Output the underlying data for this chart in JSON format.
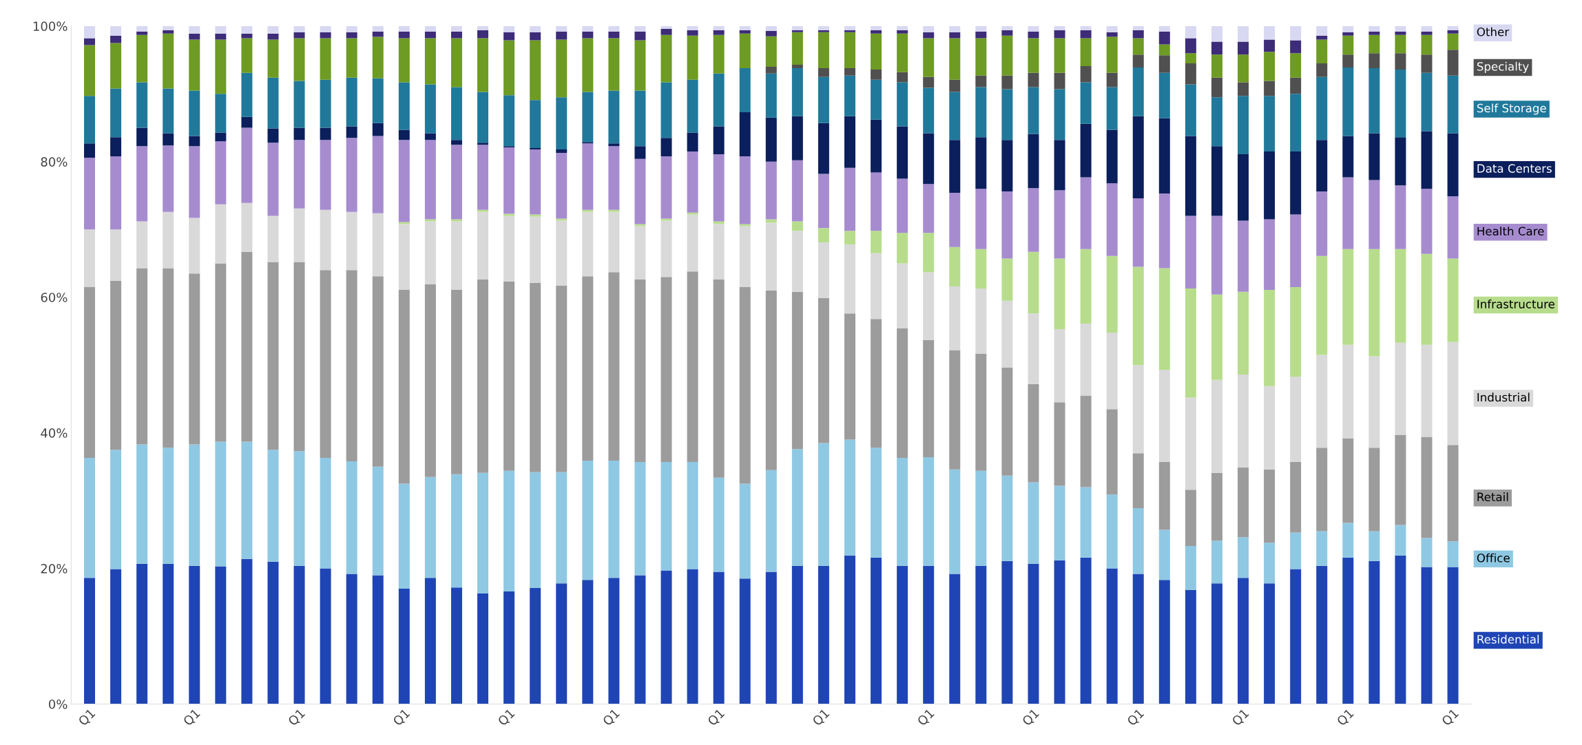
{
  "chart_data": {
    "type": "bar",
    "stacked": true,
    "categories": [
      "Q1",
      null,
      null,
      null,
      "Q1",
      null,
      null,
      null,
      "Q1",
      null,
      null,
      null,
      "Q1",
      null,
      null,
      null,
      "Q1",
      null,
      null,
      null,
      "Q1",
      null,
      null,
      null,
      "Q1",
      null,
      null,
      null,
      "Q1",
      null,
      null,
      null,
      "Q1",
      null,
      null,
      null,
      "Q1",
      null,
      null,
      null,
      "Q1",
      null,
      null,
      null,
      "Q1",
      null,
      null,
      null,
      "Q1",
      null,
      null,
      null,
      "Q1"
    ],
    "ylim": [
      0,
      100
    ],
    "yticks": [
      {
        "value": 0,
        "label": "0%"
      },
      {
        "value": 20,
        "label": "20%"
      },
      {
        "value": 40,
        "label": "40%"
      },
      {
        "value": 60,
        "label": "60%"
      },
      {
        "value": 80,
        "label": "80%"
      },
      {
        "value": 100,
        "label": "100%"
      }
    ],
    "series": [
      {
        "name": "Residential",
        "color": "#1f45b5",
        "values": [
          18.6,
          19.9,
          20.7,
          20.7,
          20.4,
          20.3,
          21.4,
          21.0,
          20.4,
          20.0,
          19.2,
          19.0,
          17.0,
          18.6,
          17.2,
          16.3,
          16.6,
          17.1,
          17.8,
          18.3,
          18.6,
          19.0,
          19.7,
          19.9,
          19.5,
          18.5,
          19.5,
          20.4,
          20.4,
          21.9,
          21.6,
          20.4,
          20.4,
          19.2,
          20.4,
          21.1,
          20.7,
          21.2,
          21.6,
          20.0,
          19.2,
          18.3,
          16.8,
          17.8,
          18.6,
          17.8,
          19.9,
          20.4,
          21.6,
          21.1,
          21.9,
          20.2,
          20.2
        ]
      },
      {
        "name": "Office",
        "color": "#8fc8e3",
        "values": [
          17.7,
          17.6,
          17.6,
          17.1,
          17.9,
          18.4,
          17.3,
          16.5,
          16.9,
          16.3,
          16.6,
          16.0,
          15.5,
          14.9,
          16.7,
          17.8,
          17.8,
          17.1,
          16.4,
          17.6,
          17.3,
          16.7,
          16.0,
          15.8,
          13.9,
          14.0,
          15.0,
          17.2,
          18.1,
          17.1,
          16.2,
          15.9,
          16.0,
          15.4,
          14.0,
          12.6,
          12.0,
          11.0,
          10.4,
          10.9,
          9.7,
          7.4,
          6.5,
          6.3,
          6.0,
          6.0,
          5.4,
          5.1,
          5.1,
          4.4,
          4.5,
          4.3,
          3.8
        ]
      },
      {
        "name": "Retail",
        "color": "#9c9c9c",
        "values": [
          25.2,
          24.9,
          26.0,
          26.5,
          25.2,
          26.3,
          28.0,
          27.7,
          27.9,
          27.7,
          28.2,
          28.1,
          28.6,
          28.4,
          27.2,
          28.5,
          27.9,
          27.9,
          27.5,
          27.2,
          27.8,
          26.9,
          27.3,
          28.1,
          29.2,
          29.0,
          26.5,
          23.2,
          21.4,
          18.6,
          19.0,
          19.1,
          17.3,
          17.6,
          17.3,
          15.9,
          14.5,
          12.3,
          13.5,
          12.6,
          8.1,
          10.0,
          8.3,
          10.0,
          10.3,
          10.8,
          10.4,
          12.3,
          12.5,
          12.3,
          13.3,
          14.9,
          14.2
        ]
      },
      {
        "name": "Industrial",
        "color": "#d9d9d9",
        "values": [
          8.5,
          7.6,
          6.9,
          8.3,
          8.2,
          8.7,
          7.2,
          6.8,
          7.9,
          8.9,
          8.6,
          9.3,
          9.7,
          9.3,
          10.1,
          10.0,
          9.7,
          9.8,
          9.6,
          9.5,
          8.9,
          7.9,
          8.3,
          8.4,
          8.2,
          9.0,
          10.0,
          9.0,
          8.2,
          10.2,
          9.7,
          9.6,
          10.0,
          9.4,
          9.6,
          9.9,
          10.4,
          10.8,
          10.6,
          11.3,
          13.0,
          13.6,
          13.6,
          13.7,
          13.7,
          12.3,
          12.6,
          13.7,
          13.8,
          13.5,
          13.6,
          13.6,
          15.2
        ]
      },
      {
        "name": "Infrastructure",
        "color": "#b7dd8c",
        "values": [
          0,
          0,
          0,
          0,
          0,
          0,
          0,
          0,
          0,
          0,
          0,
          0,
          0.3,
          0.3,
          0.3,
          0.3,
          0.3,
          0.3,
          0.3,
          0.3,
          0.3,
          0.3,
          0.3,
          0.3,
          0.4,
          0.3,
          0.5,
          1.4,
          2.1,
          2.0,
          3.3,
          4.5,
          5.8,
          5.8,
          5.8,
          6.2,
          9.1,
          10.4,
          11.0,
          11.3,
          14.5,
          15.0,
          16.1,
          12.6,
          12.2,
          14.2,
          13.2,
          14.6,
          14.1,
          15.8,
          13.8,
          13.4,
          12.3
        ]
      },
      {
        "name": "Health Care",
        "color": "#a68ccf",
        "values": [
          10.6,
          10.8,
          11.1,
          9.8,
          10.6,
          9.3,
          11.1,
          10.8,
          10.1,
          10.3,
          10.9,
          11.4,
          12.1,
          11.7,
          11.0,
          9.6,
          9.8,
          9.6,
          9.7,
          9.8,
          9.4,
          9.6,
          9.2,
          9.0,
          9.9,
          10.0,
          8.5,
          9.0,
          8.0,
          9.3,
          8.6,
          8.0,
          7.2,
          8.0,
          8.9,
          9.9,
          9.4,
          10.1,
          10.6,
          10.7,
          10.1,
          11.0,
          10.7,
          11.6,
          10.5,
          10.4,
          10.7,
          9.5,
          10.6,
          10.2,
          9.4,
          9.6,
          9.2
        ]
      },
      {
        "name": "Data Centers",
        "color": "#0b1f5c",
        "values": [
          2.1,
          2.8,
          2.7,
          1.8,
          1.5,
          1.3,
          1.6,
          2.1,
          1.8,
          1.8,
          1.7,
          1.9,
          1.5,
          1.0,
          0.7,
          0.3,
          0.2,
          0.2,
          0.5,
          0.2,
          0.4,
          1.9,
          2.7,
          2.8,
          4.1,
          6.5,
          6.5,
          6.5,
          7.5,
          7.6,
          7.8,
          7.7,
          7.5,
          7.8,
          7.6,
          7.6,
          8.0,
          7.4,
          7.9,
          7.9,
          12.1,
          11.1,
          11.8,
          10.3,
          9.8,
          10.0,
          9.3,
          7.6,
          6.1,
          6.9,
          7.1,
          8.5,
          9.3
        ]
      },
      {
        "name": "Self Storage",
        "color": "#20799b",
        "values": [
          7.0,
          7.2,
          6.7,
          6.6,
          6.7,
          5.7,
          6.5,
          7.5,
          6.9,
          7.1,
          7.2,
          6.6,
          7.0,
          7.2,
          7.8,
          7.5,
          7.5,
          7.1,
          7.7,
          7.4,
          7.8,
          8.2,
          8.2,
          7.8,
          7.8,
          6.5,
          6.5,
          7.1,
          6.8,
          6.0,
          5.9,
          6.5,
          6.7,
          7.1,
          7.4,
          7.5,
          6.9,
          7.5,
          6.1,
          6.3,
          7.2,
          6.7,
          7.6,
          7.2,
          8.6,
          8.2,
          8.5,
          9.3,
          10.1,
          9.6,
          10.0,
          8.6,
          8.5
        ]
      },
      {
        "name": "Specialty",
        "color": "#505050",
        "values": [
          0,
          0,
          0,
          0,
          0,
          0,
          0,
          0,
          0,
          0,
          0,
          0,
          0,
          0,
          0,
          0,
          0,
          0,
          0,
          0,
          0,
          0,
          0,
          0,
          0,
          0,
          1.0,
          0.5,
          1.3,
          1.1,
          1.5,
          1.5,
          1.6,
          1.8,
          1.7,
          2.0,
          2.1,
          2.4,
          2.4,
          2.1,
          1.9,
          2.6,
          3.1,
          2.9,
          2.0,
          2.2,
          2.4,
          2.0,
          1.9,
          2.2,
          2.4,
          2.7,
          3.8
        ]
      },
      {
        "color": "#6e9b23",
        "values": [
          7.5,
          6.7,
          7.0,
          8.1,
          7.5,
          8.0,
          5.1,
          5.6,
          6.3,
          6.1,
          5.8,
          6.1,
          6.5,
          6.8,
          7.2,
          7.9,
          8.1,
          8.8,
          8.5,
          7.9,
          7.7,
          7.4,
          7.0,
          6.5,
          5.7,
          5.1,
          4.5,
          4.8,
          5.3,
          5.3,
          5.3,
          5.7,
          5.7,
          6.1,
          5.5,
          5.9,
          5.1,
          5.1,
          4.1,
          5.3,
          2.4,
          1.6,
          1.5,
          3.4,
          4.1,
          4.3,
          3.6,
          3.5,
          2.8,
          2.7,
          2.7,
          2.9,
          2.4
        ]
      },
      {
        "color": "#3d2c78",
        "values": [
          1.0,
          1.1,
          0.5,
          0.5,
          0.9,
          0.9,
          0.7,
          0.9,
          0.9,
          0.9,
          0.9,
          0.8,
          1.0,
          1.0,
          1.0,
          1.2,
          1.2,
          1.2,
          1.2,
          1.0,
          1.0,
          1.3,
          0.9,
          0.8,
          0.7,
          0.5,
          0.8,
          0.3,
          0.3,
          0.3,
          0.5,
          0.5,
          0.9,
          0.9,
          1.0,
          0.8,
          1.0,
          1.2,
          1.2,
          0.7,
          1.2,
          1.9,
          2.2,
          1.9,
          1.9,
          1.8,
          1.9,
          0.6,
          0.5,
          0.5,
          0.5,
          0.5,
          0.5
        ]
      },
      {
        "name": "Other",
        "color": "#d8d8f2",
        "values": [
          1.8,
          1.4,
          0.8,
          0.6,
          1.1,
          1.1,
          1.1,
          1.1,
          0.9,
          0.9,
          0.9,
          0.8,
          0.8,
          0.8,
          0.8,
          0.6,
          0.9,
          0.9,
          0.8,
          0.8,
          0.8,
          0.8,
          0.4,
          0.6,
          0.6,
          0.6,
          0.7,
          0.6,
          0.6,
          0.6,
          0.6,
          0.6,
          0.9,
          0.9,
          0.8,
          0.6,
          0.8,
          0.6,
          0.6,
          0.9,
          0.6,
          0.8,
          1.8,
          2.3,
          2.3,
          2.0,
          2.1,
          1.4,
          0.9,
          0.8,
          0.8,
          0.8,
          0.6
        ]
      }
    ]
  }
}
